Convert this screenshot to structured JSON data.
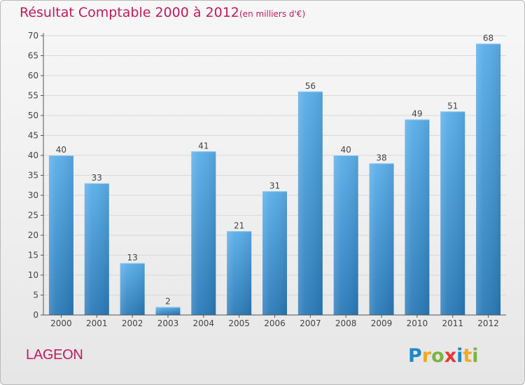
{
  "title": "Résultat Comptable 2000 à 2012",
  "subtitle": "(en milliers d'€)",
  "location": "LAGEON",
  "logo_text": "Proxiti",
  "colors": {
    "title": "#c2185b",
    "bar_top": "#5aaee9",
    "bar_bottom": "#2a7ab8",
    "axis": "#555555",
    "grid": "#d9d9d9"
  },
  "chart_data": {
    "type": "bar",
    "title": "Résultat Comptable 2000 à 2012",
    "subtitle": "(en milliers d'€)",
    "categories": [
      "2000",
      "2001",
      "2002",
      "2003",
      "2004",
      "2005",
      "2006",
      "2007",
      "2008",
      "2009",
      "2010",
      "2011",
      "2012"
    ],
    "values": [
      40,
      33,
      13,
      2,
      41,
      21,
      31,
      56,
      40,
      38,
      49,
      51,
      68
    ],
    "ylim": [
      0,
      70
    ],
    "yticks": [
      0,
      5,
      10,
      15,
      20,
      25,
      30,
      35,
      40,
      45,
      50,
      55,
      60,
      65,
      70
    ],
    "grid": true,
    "data_labels": true
  }
}
